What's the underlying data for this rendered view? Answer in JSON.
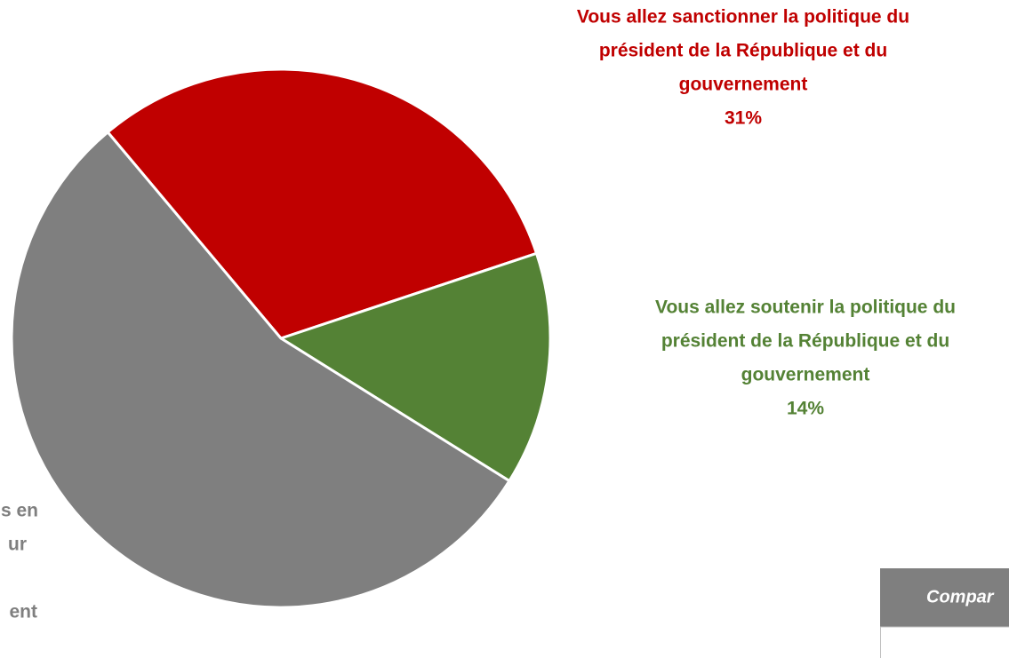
{
  "chart_data": {
    "type": "pie",
    "categories": [
      [
        "Vous allez sanctionner la politique du",
        "président de la République et du",
        "gouvernement"
      ],
      [
        "Vous allez soutenir la politique du",
        "président de la République et du",
        "gouvernement"
      ],
      [
        "s en",
        "ur",
        "ent"
      ]
    ],
    "values": [
      31,
      14,
      55
    ],
    "value_labels": [
      "31%",
      "14%",
      null
    ],
    "colors": [
      "#c00000",
      "#548235",
      "#7f7f7f"
    ]
  },
  "table": {
    "header": "Compar"
  }
}
